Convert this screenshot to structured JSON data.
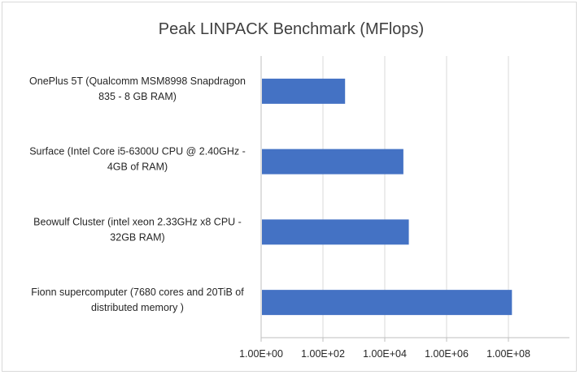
{
  "chart_data": {
    "type": "bar",
    "orientation": "horizontal",
    "title": "Peak LINPACK  Benchmark (MFlops)",
    "xlabel": "",
    "ylabel": "",
    "x_scale": "log10",
    "xlim": [
      1,
      100000000
    ],
    "x_ticks": [
      "1.00E+00",
      "1.00E+02",
      "1.00E+04",
      "1.00E+06",
      "1.00E+08"
    ],
    "grid": true,
    "bar_color": "#4472c4",
    "categories": [
      [
        "OnePlus 5T (Qualcomm MSM8998 Snapdragon",
        "835 - 8 GB RAM)"
      ],
      [
        "Surface (Intel Core i5-6300U CPU @ 2.40GHz -",
        "4GB of RAM)"
      ],
      [
        "Beowulf Cluster (intel xeon 2.33GHz x8 CPU -",
        "32GB RAM)"
      ],
      [
        "Fionn supercomputer (7680 cores and 20TiB of",
        "distributed memory )"
      ]
    ],
    "values": [
      520,
      40000,
      60000,
      130000000
    ]
  }
}
